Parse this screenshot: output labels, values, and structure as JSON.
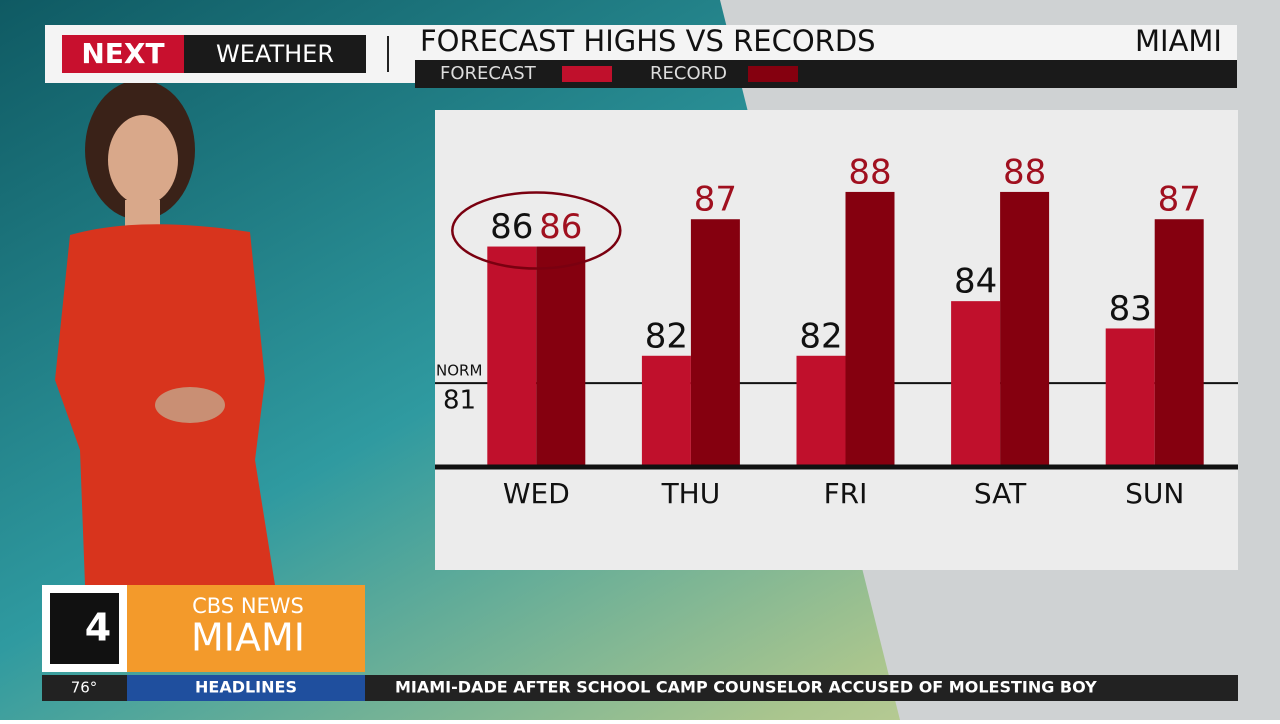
{
  "chart_data": {
    "type": "bar",
    "title": "FORECAST HIGHS VS RECORDS",
    "location": "MIAMI",
    "categories": [
      "WED",
      "THU",
      "FRI",
      "SAT",
      "SUN"
    ],
    "series": [
      {
        "name": "FORECAST",
        "color": "#c0102c",
        "values": [
          86,
          82,
          82,
          84,
          83
        ]
      },
      {
        "name": "RECORD",
        "color": "#85000f",
        "values": [
          86,
          87,
          88,
          88,
          87
        ]
      }
    ],
    "ylim": [
      78,
      91
    ],
    "normal": {
      "label": "NORM",
      "value": 81
    }
  },
  "broadcast": {
    "brand": "NEXT",
    "segment": "WEATHER",
    "network": "CBS NEWS",
    "city": "MIAMI",
    "channel": "4",
    "temperature": "76°",
    "section": "HEADLINES",
    "ticker": "MIAMI-DADE AFTER SCHOOL CAMP COUNSELOR ACCUSED OF MOLESTING BOY"
  }
}
